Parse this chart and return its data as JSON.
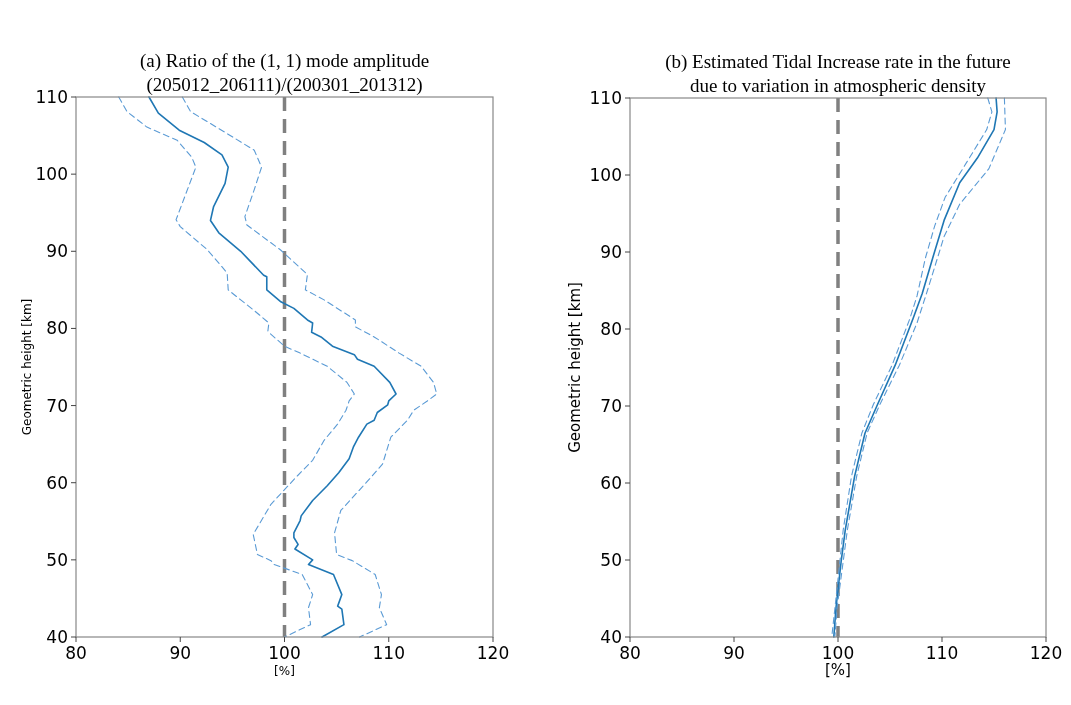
{
  "chart_data": [
    {
      "type": "line",
      "title": "(a) Ratio of the (1, 1) mode amplitude\n(205012_206111)/(200301_201312)",
      "xlabel": "[%]",
      "ylabel": "Geometric height [km]",
      "xlim": [
        80,
        120
      ],
      "xticks": [
        80,
        90,
        100,
        110,
        120
      ],
      "ylim": [
        40,
        110
      ],
      "yticks": [
        40,
        50,
        60,
        70,
        80,
        90,
        100,
        110
      ],
      "ref_lines": [
        {
          "axis": "x",
          "value": 100,
          "color": "#808080",
          "line_style": "dashed"
        }
      ],
      "series": [
        {
          "color": "#1f77b4",
          "line_style": "solid",
          "x": [
            87.0,
            87.9,
            89.9,
            92.3,
            94.0,
            94.6,
            94.3,
            93.2,
            92.9,
            93.7,
            95.8,
            98.0,
            98.3,
            98.3,
            99.6,
            100.9,
            102.2,
            102.7,
            102.6,
            103.5,
            104.6,
            106.7,
            107.0,
            108.6,
            110.1,
            110.7,
            110.0,
            109.9,
            108.9,
            108.6,
            107.9,
            107.1,
            106.6,
            106.2,
            105.2,
            104.1,
            102.7,
            101.6,
            101.5,
            100.9,
            100.9,
            101.3,
            101.0,
            102.7,
            102.3,
            104.7,
            105.5,
            105.1,
            105.5,
            105.7,
            103.6
          ],
          "values": [
            110,
            107.9,
            105.7,
            104.1,
            102.5,
            100.9,
            98.8,
            95.8,
            94.0,
            92.4,
            90.0,
            86.9,
            86.7,
            85.0,
            83.5,
            82.6,
            81.1,
            80.7,
            79.5,
            78.9,
            77.7,
            76.6,
            76.0,
            75.1,
            73.0,
            71.5,
            70.6,
            70.1,
            69.1,
            68.1,
            67.6,
            65.9,
            64.6,
            63.1,
            61.3,
            59.6,
            57.7,
            55.7,
            55.1,
            53.5,
            52.9,
            52.0,
            51.4,
            50.0,
            49.4,
            48.1,
            45.5,
            44.0,
            43.6,
            41.6,
            40.0
          ]
        },
        {
          "color": "#5b9bd5",
          "line_style": "dashed",
          "x": [
            84.1,
            84.9,
            86.8,
            89.7,
            91.1,
            91.5,
            90.8,
            89.6,
            90.0,
            92.6,
            94.5,
            94.6,
            95.8,
            97.2,
            98.5,
            98.4,
            100.0,
            101.5,
            104.1,
            106.0,
            106.7,
            106.2,
            105.9,
            105.1,
            103.8,
            102.7,
            101.1,
            98.7,
            97.0,
            97.4,
            98.7,
            99.0,
            101.7,
            102.7,
            102.3,
            102.5,
            100.0
          ],
          "values": [
            110,
            108.1,
            106.1,
            104.4,
            102.2,
            100.9,
            98.4,
            94.1,
            93.2,
            90.2,
            87.2,
            85.0,
            83.7,
            82.2,
            80.7,
            79.6,
            77.7,
            76.8,
            75.1,
            73.0,
            71.5,
            70.6,
            69.4,
            67.6,
            65.5,
            62.9,
            60.7,
            57.2,
            53.3,
            50.7,
            49.9,
            49.4,
            48.1,
            45.5,
            43.8,
            41.6,
            40.0
          ]
        },
        {
          "color": "#5b9bd5",
          "line_style": "dashed",
          "x": [
            90.2,
            91.0,
            94.2,
            97.1,
            97.8,
            97.1,
            96.2,
            96.4,
            99.6,
            102.2,
            102.0,
            103.8,
            106.8,
            106.8,
            108.6,
            111.0,
            113.1,
            114.3,
            114.6,
            113.7,
            112.4,
            111.8,
            110.2,
            109.4,
            108.3,
            105.4,
            104.8,
            105.0,
            106.5,
            108.7,
            109.3,
            109.1,
            109.8,
            107.2
          ],
          "values": [
            110,
            108.1,
            105.5,
            103.1,
            100.9,
            98.0,
            94.5,
            93.4,
            90.2,
            87.0,
            85.0,
            83.7,
            81.1,
            80.2,
            78.9,
            76.8,
            75.1,
            73.0,
            71.5,
            70.6,
            69.4,
            68.1,
            65.9,
            62.4,
            60.7,
            56.4,
            53.5,
            50.7,
            49.9,
            48.1,
            45.5,
            43.8,
            41.6,
            40.0
          ]
        }
      ]
    },
    {
      "type": "line",
      "title": "(b) Estimated Tidal Increase rate in the future\ndue to variation in atmospheric density",
      "xlabel": "[%]",
      "ylabel": "Geometric height [km]",
      "xlim": [
        80,
        120
      ],
      "xticks": [
        80,
        90,
        100,
        110,
        120
      ],
      "ylim": [
        40,
        110
      ],
      "yticks": [
        40,
        50,
        60,
        70,
        80,
        90,
        100,
        110
      ],
      "ref_lines": [
        {
          "axis": "x",
          "value": 100,
          "color": "#808080",
          "line_style": "dashed"
        }
      ],
      "series": [
        {
          "color": "#1f77b4",
          "line_style": "solid",
          "x": [
            115.2,
            115.3,
            115.0,
            113.4,
            111.7,
            110.2,
            109.1,
            108.1,
            107.2,
            105.5,
            103.8,
            102.6,
            101.6,
            100.7,
            100.3,
            99.8,
            99.6
          ],
          "values": [
            110,
            108.2,
            105.9,
            102.2,
            99.0,
            94.1,
            89.2,
            84.6,
            81.3,
            75.3,
            70.2,
            66.5,
            60.9,
            53.9,
            49.8,
            43.7,
            40
          ]
        },
        {
          "color": "#5b9bd5",
          "line_style": "dashed",
          "x": [
            116.0,
            116.1,
            114.5,
            111.7,
            110.2,
            108.6,
            107.6,
            105.9,
            104.1,
            102.8,
            101.8,
            100.9,
            99.9,
            99.7
          ],
          "values": [
            110,
            105.9,
            100.8,
            96.2,
            92.0,
            85.0,
            80.8,
            75.3,
            70.4,
            66.5,
            60.9,
            53.9,
            43.7,
            40
          ]
        },
        {
          "color": "#5b9bd5",
          "line_style": "dashed",
          "x": [
            114.4,
            114.8,
            114.3,
            112.4,
            110.3,
            109.3,
            108.4,
            107.6,
            106.9,
            105.2,
            103.4,
            102.3,
            101.3,
            100.5,
            99.7,
            99.4
          ],
          "values": [
            110,
            108.2,
            105.9,
            101.7,
            97.1,
            93.4,
            89.2,
            84.3,
            81.3,
            75.3,
            70.2,
            66.5,
            60.9,
            53.9,
            43.7,
            40
          ]
        }
      ]
    }
  ]
}
